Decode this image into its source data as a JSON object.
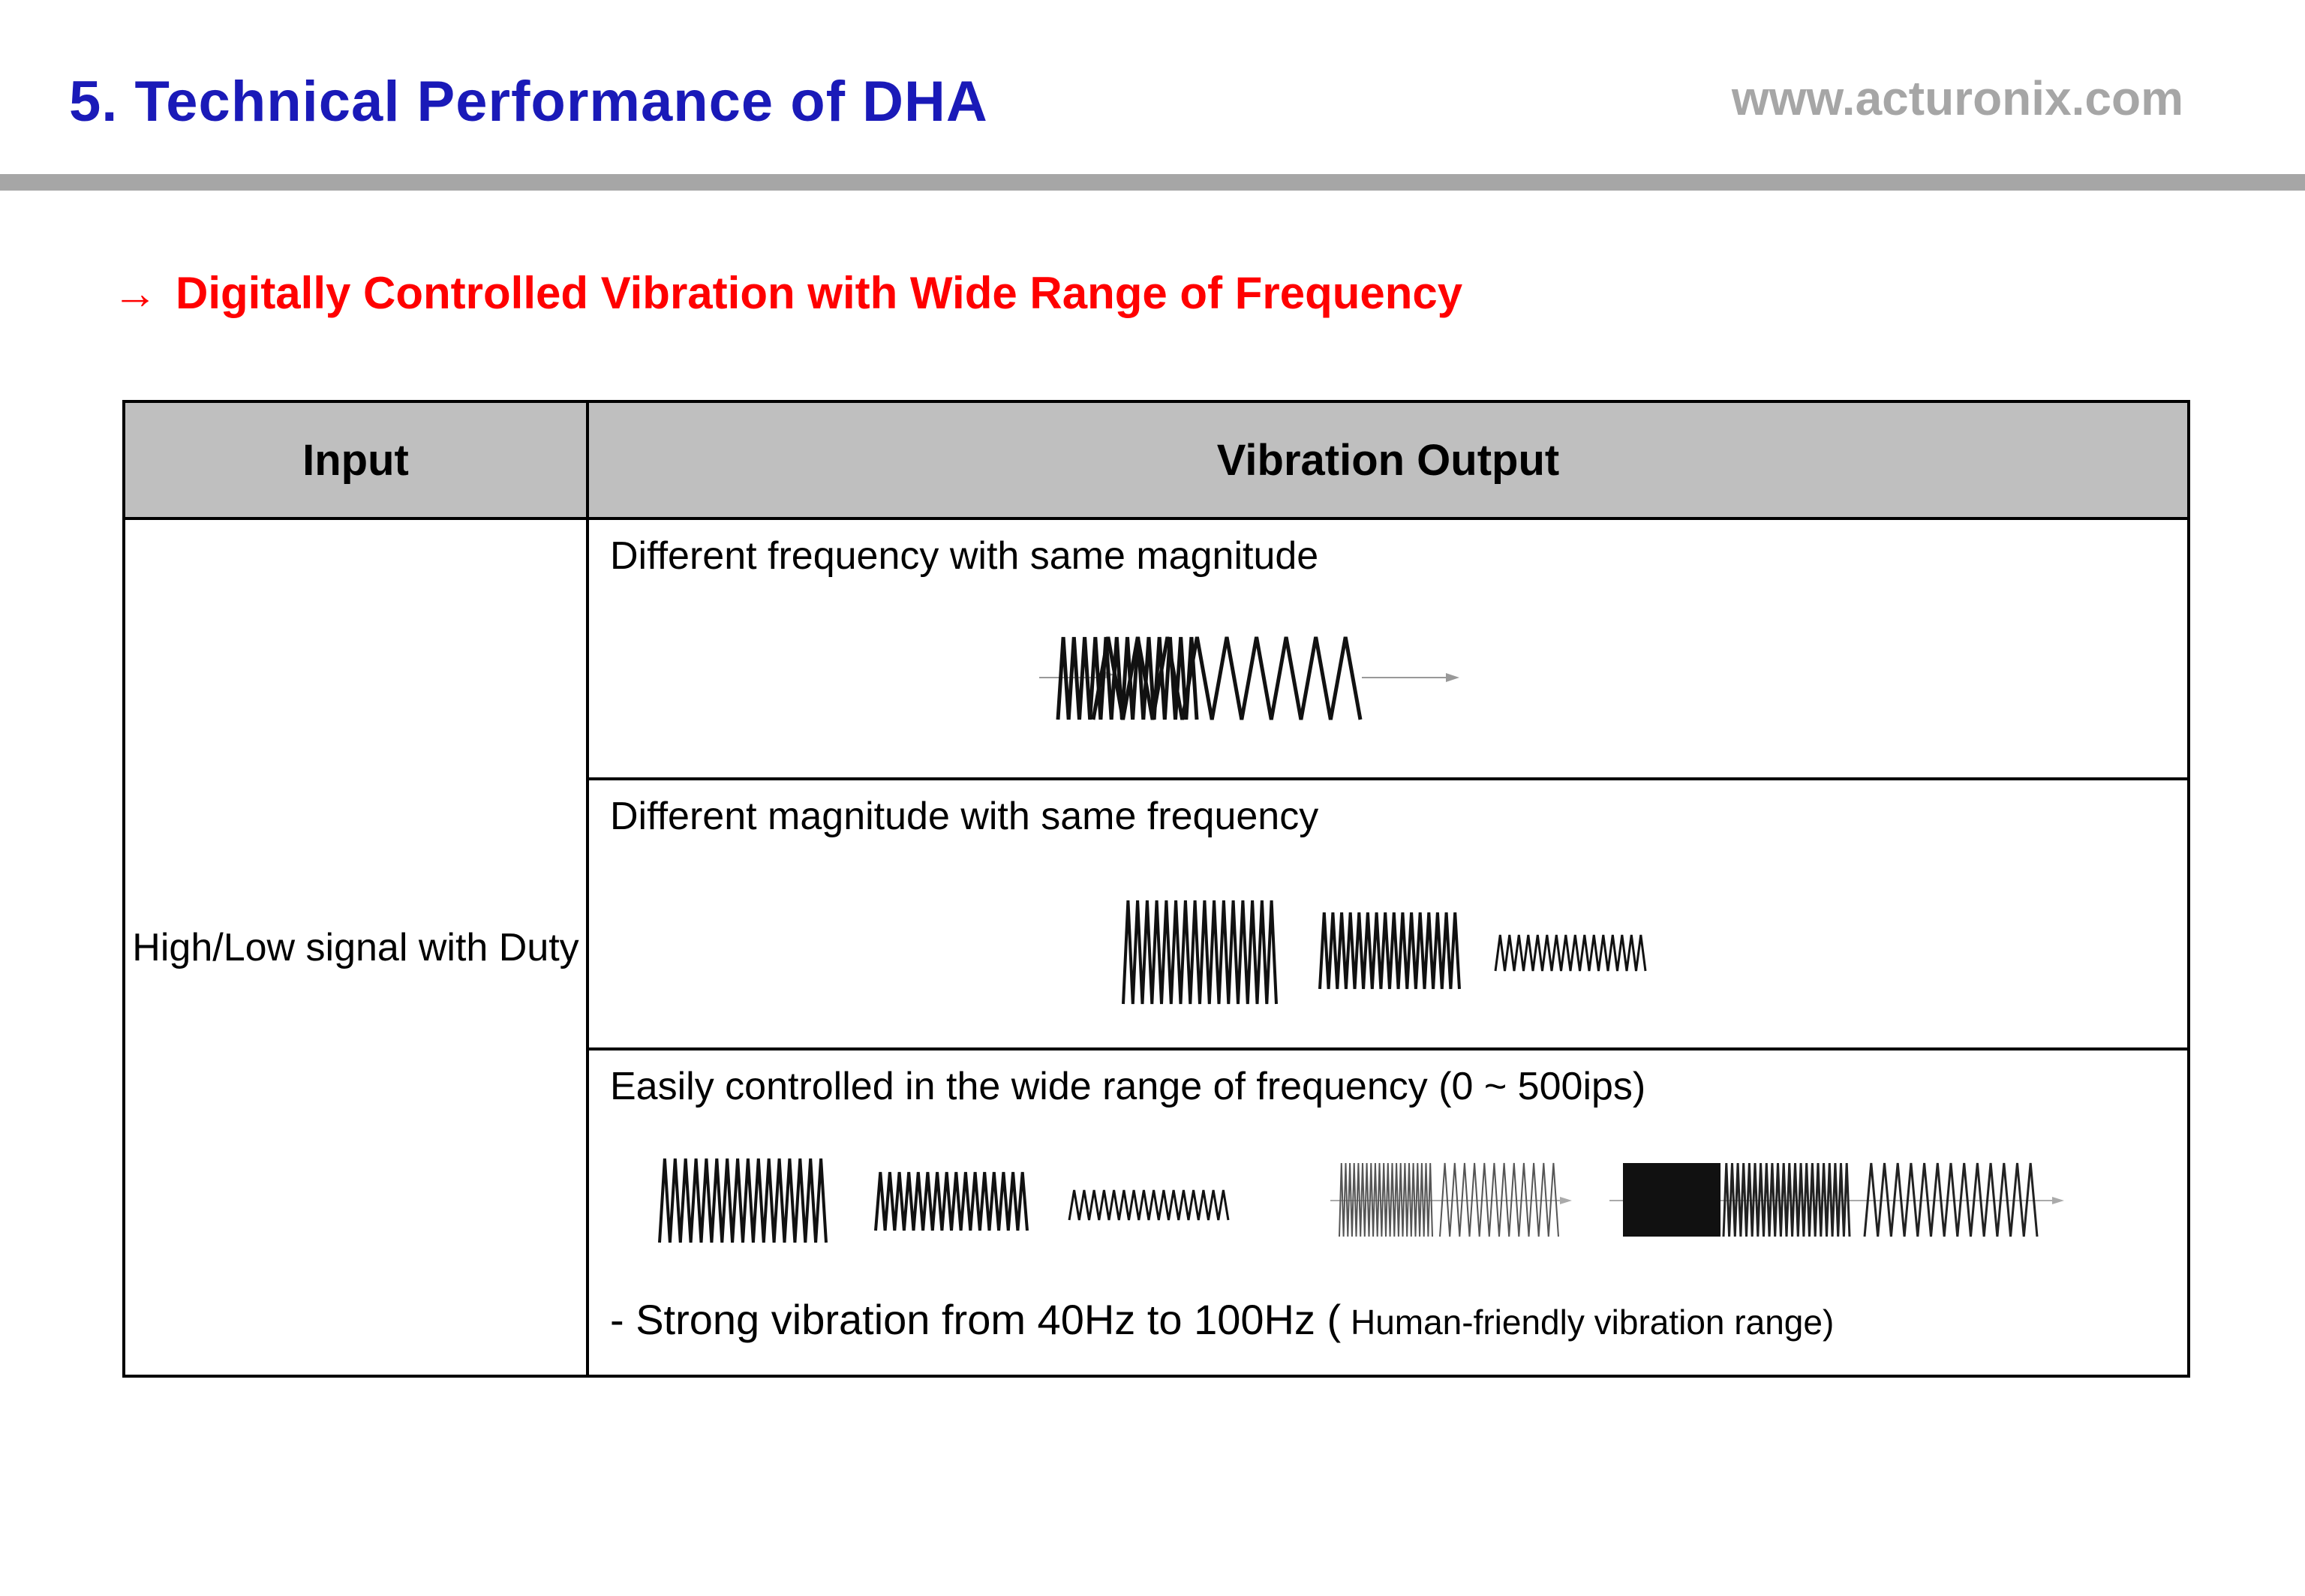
{
  "header": {
    "title": "5. Technical Performance of DHA",
    "website": "www.acturonix.com"
  },
  "subtitle": {
    "arrow": "→",
    "text": "Digitally Controlled Vibration with Wide Range of Frequency"
  },
  "table": {
    "headers": [
      "Input",
      "Vibration Output"
    ],
    "input": "High/Low signal with Duty",
    "rows": [
      {
        "label": "Different frequency with same magnitude"
      },
      {
        "label": "Different magnitude with same frequency"
      },
      {
        "label": "Easily controlled in the wide range of frequency (0 ~ 500ips)",
        "note_main": "- Strong vibration from 40Hz to 100Hz (",
        "note_small": " Human-friendly vibration range)"
      }
    ]
  }
}
